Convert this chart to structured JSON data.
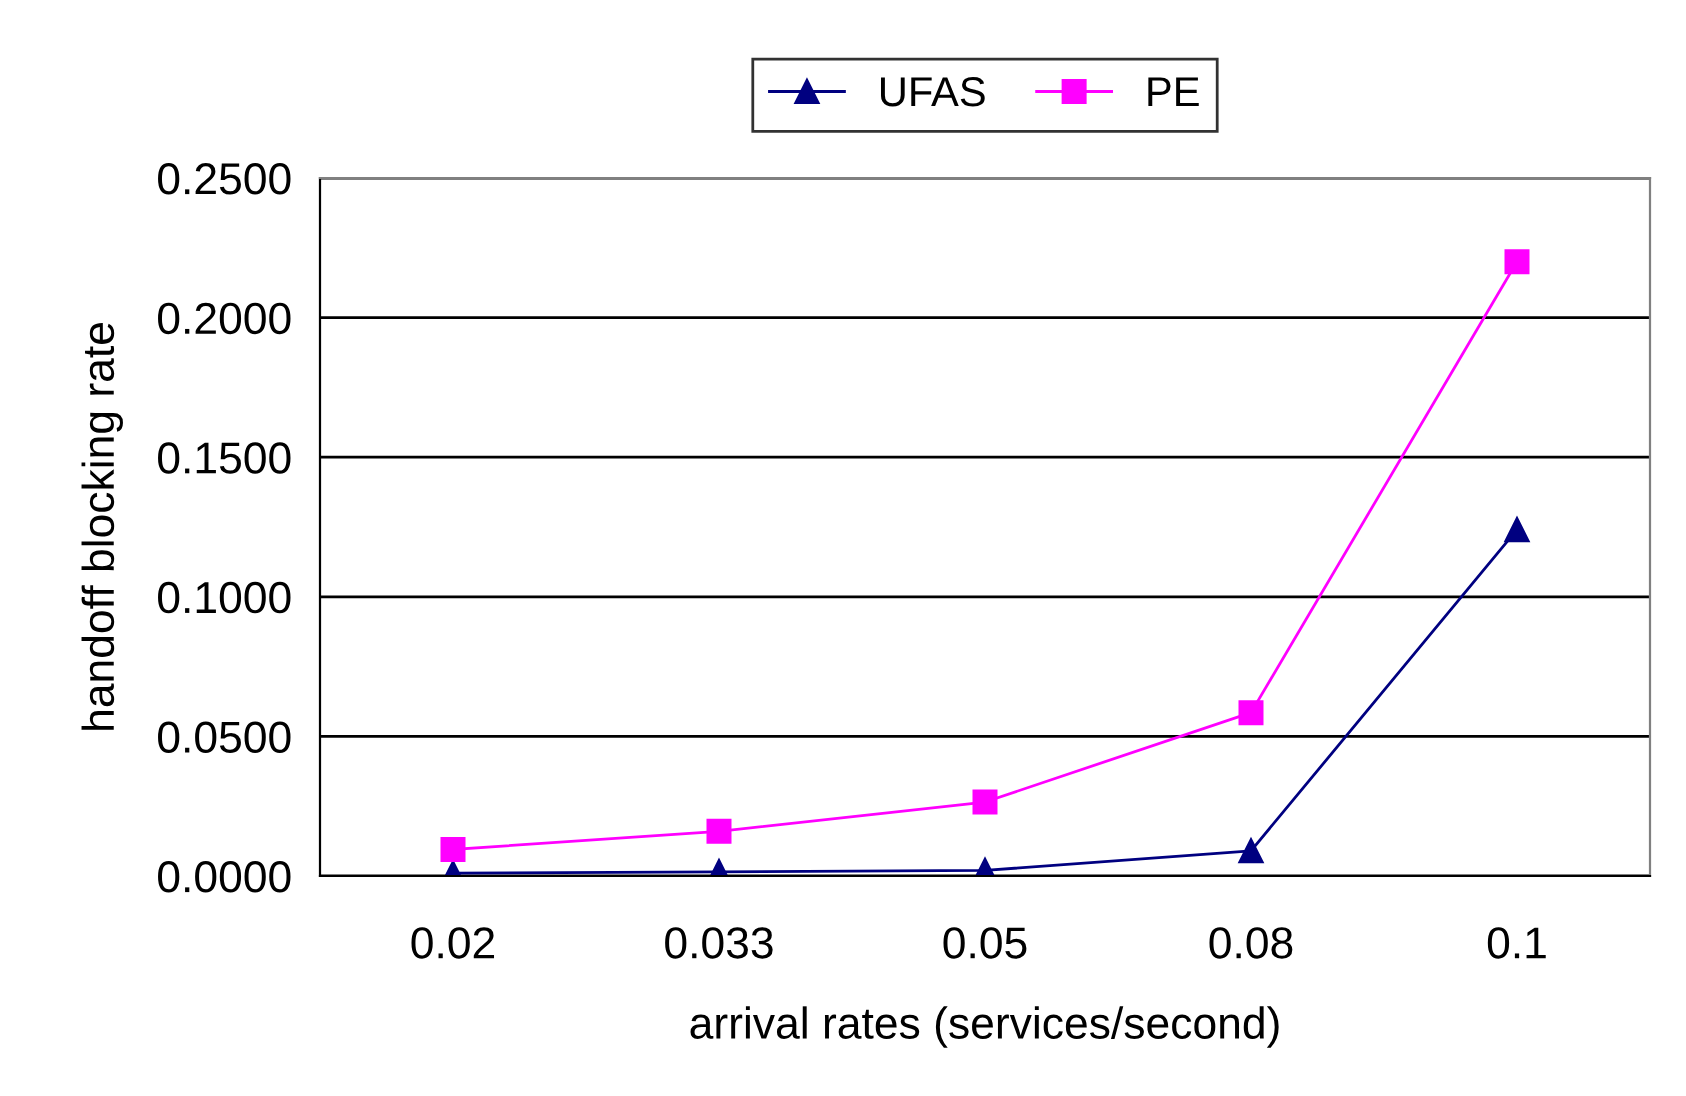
{
  "chart_data": {
    "type": "line",
    "xlabel": "arrival rates (services/second)",
    "ylabel": "handoff blocking rate",
    "categories": [
      "0.02",
      "0.033",
      "0.05",
      "0.08",
      "0.1"
    ],
    "series": [
      {
        "name": "UFAS",
        "color": "#000080",
        "marker": "triangle",
        "values": [
          0.001,
          0.0015,
          0.002,
          0.009,
          0.124
        ]
      },
      {
        "name": "PE",
        "color": "#ff00ff",
        "marker": "square",
        "values": [
          0.0095,
          0.016,
          0.0265,
          0.0585,
          0.22
        ]
      }
    ],
    "ylim": [
      0,
      0.25
    ],
    "yticks": [
      {
        "value": 0,
        "label": "0.0000"
      },
      {
        "value": 0.05,
        "label": "0.0500"
      },
      {
        "value": 0.1,
        "label": "0.1000"
      },
      {
        "value": 0.15,
        "label": "0.1500"
      },
      {
        "value": 0.2,
        "label": "0.2000"
      },
      {
        "value": 0.25,
        "label": "0.2500"
      }
    ],
    "grid": "y",
    "legend": "top",
    "line_style": "solid"
  }
}
